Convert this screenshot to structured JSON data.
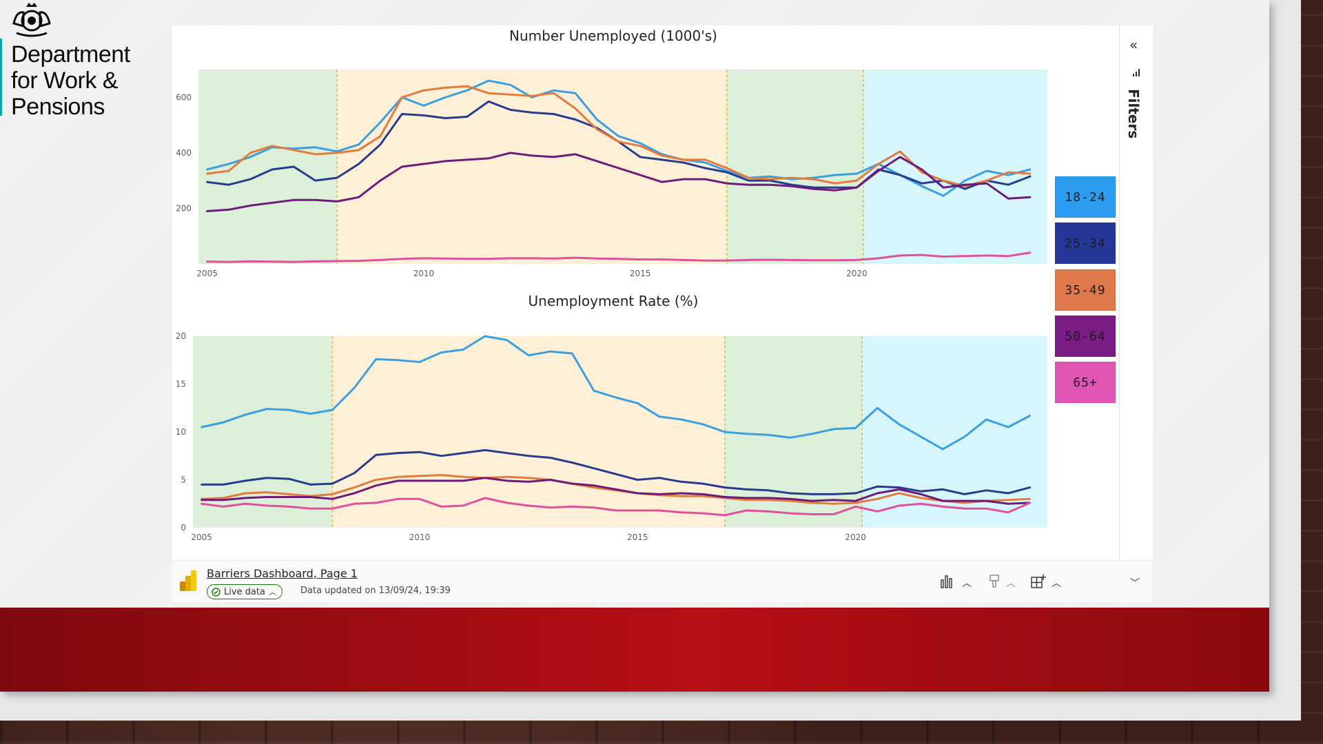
{
  "logo": {
    "name_lines": [
      "Department",
      "for Work &",
      "Pensions"
    ]
  },
  "colors": {
    "18-24": "#3a9fe0",
    "25-34": "#273b8f",
    "35-49": "#e47a3c",
    "50-64": "#6e1a7a",
    "65+": "#e0509c",
    "band_green": "#dcefd9",
    "band_orange": "#fef0d6",
    "band_cyan": "#d6f6fb",
    "red_band": "#b70f14"
  },
  "legend": [
    {
      "label": "18-24",
      "color": "#2b9cf0"
    },
    {
      "label": "25-34",
      "color": "#25389a"
    },
    {
      "label": "35-49",
      "color": "#e0784a"
    },
    {
      "label": "50-64",
      "color": "#7a1c86"
    },
    {
      "label": "65+",
      "color": "#e055b4"
    }
  ],
  "filters": {
    "label": "Filters",
    "collapse_icon": "double-chevron-left-icon",
    "filter_icon": "filter-icon"
  },
  "footer": {
    "report_name": "Barriers Dashboard, Page 1",
    "live_label": "Live data",
    "updated": "Data updated on 13/09/24, 19:39",
    "icons": [
      "bar-chart-icon",
      "chevron-up-icon",
      "paint-brush-icon",
      "chevron-up-icon",
      "add-visual-icon",
      "chevron-up-icon",
      "chevron-down-icon"
    ]
  },
  "chart_data": [
    {
      "type": "line",
      "title": "Number Unemployed (1000's)",
      "xlabel": "",
      "ylabel": "",
      "xlim": [
        2004.8,
        2024.4
      ],
      "ylim": [
        0,
        700
      ],
      "x_ticks": [
        2005,
        2010,
        2015,
        2020
      ],
      "y_ticks": [
        200,
        400,
        600
      ],
      "grid": false,
      "bands": [
        {
          "from": 2004.8,
          "to": 2008,
          "color": "green"
        },
        {
          "from": 2008,
          "to": 2017,
          "color": "orange"
        },
        {
          "from": 2017,
          "to": 2020.15,
          "color": "green"
        },
        {
          "from": 2020.15,
          "to": 2024.4,
          "color": "cyan"
        }
      ],
      "x": [
        2005,
        2005.5,
        2006,
        2006.5,
        2007,
        2007.5,
        2008,
        2008.5,
        2009,
        2009.5,
        2010,
        2010.5,
        2011,
        2011.5,
        2012,
        2012.5,
        2013,
        2013.5,
        2014,
        2014.5,
        2015,
        2015.5,
        2016,
        2016.5,
        2017,
        2017.5,
        2018,
        2018.5,
        2019,
        2019.5,
        2020,
        2020.5,
        2021,
        2021.5,
        2022,
        2022.5,
        2023,
        2023.5,
        2024
      ],
      "series": [
        {
          "name": "18-24",
          "values": [
            340,
            360,
            385,
            420,
            415,
            420,
            405,
            430,
            510,
            600,
            570,
            600,
            625,
            660,
            645,
            600,
            625,
            615,
            520,
            460,
            435,
            395,
            375,
            365,
            335,
            310,
            315,
            305,
            310,
            320,
            325,
            360,
            320,
            280,
            245,
            300,
            335,
            320,
            340
          ]
        },
        {
          "name": "25-34",
          "values": [
            295,
            285,
            305,
            340,
            350,
            300,
            310,
            360,
            430,
            540,
            535,
            525,
            530,
            585,
            555,
            545,
            540,
            520,
            490,
            440,
            385,
            375,
            365,
            345,
            330,
            300,
            300,
            285,
            275,
            275,
            275,
            340,
            320,
            290,
            300,
            270,
            300,
            285,
            315
          ]
        },
        {
          "name": "35-49",
          "values": [
            325,
            335,
            400,
            425,
            410,
            395,
            400,
            410,
            460,
            600,
            625,
            635,
            640,
            615,
            610,
            605,
            615,
            560,
            485,
            440,
            425,
            390,
            375,
            375,
            345,
            310,
            305,
            310,
            305,
            290,
            300,
            360,
            405,
            330,
            300,
            280,
            300,
            330,
            325
          ]
        },
        {
          "name": "50-64",
          "values": [
            190,
            195,
            210,
            220,
            230,
            230,
            225,
            240,
            300,
            350,
            360,
            370,
            375,
            380,
            400,
            390,
            385,
            395,
            370,
            345,
            320,
            295,
            305,
            305,
            290,
            285,
            285,
            280,
            270,
            265,
            275,
            335,
            385,
            340,
            275,
            285,
            290,
            235,
            240
          ]
        },
        {
          "name": "65+",
          "values": [
            8,
            7,
            9,
            8,
            7,
            9,
            10,
            11,
            14,
            18,
            20,
            19,
            18,
            18,
            20,
            20,
            19,
            22,
            19,
            18,
            16,
            16,
            14,
            12,
            12,
            14,
            15,
            14,
            13,
            13,
            14,
            20,
            30,
            32,
            26,
            28,
            30,
            28,
            40
          ]
        }
      ]
    },
    {
      "type": "line",
      "title": "Unemployment Rate (%)",
      "xlabel": "",
      "ylabel": "",
      "xlim": [
        2004.8,
        2024.4
      ],
      "ylim": [
        0,
        20
      ],
      "x_ticks": [
        2005,
        2010,
        2015,
        2020
      ],
      "y_ticks": [
        0,
        5,
        10,
        15,
        20
      ],
      "grid": false,
      "bands": [
        {
          "from": 2004.8,
          "to": 2008,
          "color": "green"
        },
        {
          "from": 2008,
          "to": 2017,
          "color": "orange"
        },
        {
          "from": 2017,
          "to": 2020.15,
          "color": "green"
        },
        {
          "from": 2020.15,
          "to": 2024.4,
          "color": "cyan"
        }
      ],
      "x": [
        2005,
        2005.5,
        2006,
        2006.5,
        2007,
        2007.5,
        2008,
        2008.5,
        2009,
        2009.5,
        2010,
        2010.5,
        2011,
        2011.5,
        2012,
        2012.5,
        2013,
        2013.5,
        2014,
        2014.5,
        2015,
        2015.5,
        2016,
        2016.5,
        2017,
        2017.5,
        2018,
        2018.5,
        2019,
        2019.5,
        2020,
        2020.5,
        2021,
        2021.5,
        2022,
        2022.5,
        2023,
        2023.5,
        2024
      ],
      "series": [
        {
          "name": "18-24",
          "values": [
            10.5,
            11.0,
            11.8,
            12.4,
            12.3,
            11.9,
            12.3,
            14.6,
            17.6,
            17.5,
            17.3,
            18.3,
            18.6,
            20.0,
            19.6,
            18.0,
            18.4,
            18.2,
            14.3,
            13.6,
            13.0,
            11.6,
            11.3,
            10.8,
            10.0,
            9.8,
            9.7,
            9.4,
            9.8,
            10.3,
            10.4,
            12.5,
            10.8,
            9.5,
            8.2,
            9.5,
            11.3,
            10.5,
            11.7
          ]
        },
        {
          "name": "25-34",
          "values": [
            4.5,
            4.5,
            4.9,
            5.2,
            5.1,
            4.5,
            4.6,
            5.7,
            7.6,
            7.8,
            7.9,
            7.5,
            7.8,
            8.1,
            7.8,
            7.5,
            7.3,
            6.8,
            6.2,
            5.6,
            5.0,
            5.2,
            4.8,
            4.6,
            4.2,
            4.0,
            3.9,
            3.6,
            3.5,
            3.5,
            3.6,
            4.3,
            4.2,
            3.8,
            4.0,
            3.5,
            3.9,
            3.6,
            4.2
          ]
        },
        {
          "name": "35-49",
          "values": [
            3.0,
            3.1,
            3.6,
            3.7,
            3.5,
            3.3,
            3.5,
            4.2,
            5.0,
            5.3,
            5.4,
            5.5,
            5.3,
            5.2,
            5.3,
            5.2,
            5.0,
            4.6,
            4.2,
            3.9,
            3.6,
            3.4,
            3.3,
            3.3,
            3.1,
            2.9,
            2.9,
            2.8,
            2.6,
            2.5,
            2.6,
            3.0,
            3.6,
            3.1,
            2.8,
            2.6,
            2.8,
            2.9,
            3.0
          ]
        },
        {
          "name": "50-64",
          "values": [
            2.9,
            2.9,
            3.1,
            3.2,
            3.2,
            3.2,
            3.0,
            3.6,
            4.4,
            4.9,
            4.9,
            4.9,
            4.9,
            5.2,
            4.9,
            4.8,
            5.0,
            4.6,
            4.4,
            4.0,
            3.6,
            3.5,
            3.6,
            3.5,
            3.2,
            3.1,
            3.1,
            3.0,
            2.8,
            2.9,
            2.8,
            3.6,
            4.0,
            3.5,
            2.8,
            2.8,
            2.8,
            2.5,
            2.6
          ]
        },
        {
          "name": "65+",
          "values": [
            2.5,
            2.2,
            2.5,
            2.3,
            2.2,
            2.0,
            2.0,
            2.5,
            2.6,
            3.0,
            3.0,
            2.2,
            2.3,
            3.1,
            2.6,
            2.3,
            2.1,
            2.2,
            2.1,
            1.8,
            1.8,
            1.8,
            1.6,
            1.5,
            1.3,
            1.8,
            1.7,
            1.5,
            1.4,
            1.4,
            2.2,
            1.7,
            2.3,
            2.5,
            2.2,
            2.0,
            2.0,
            1.6,
            2.6
          ]
        }
      ]
    }
  ]
}
